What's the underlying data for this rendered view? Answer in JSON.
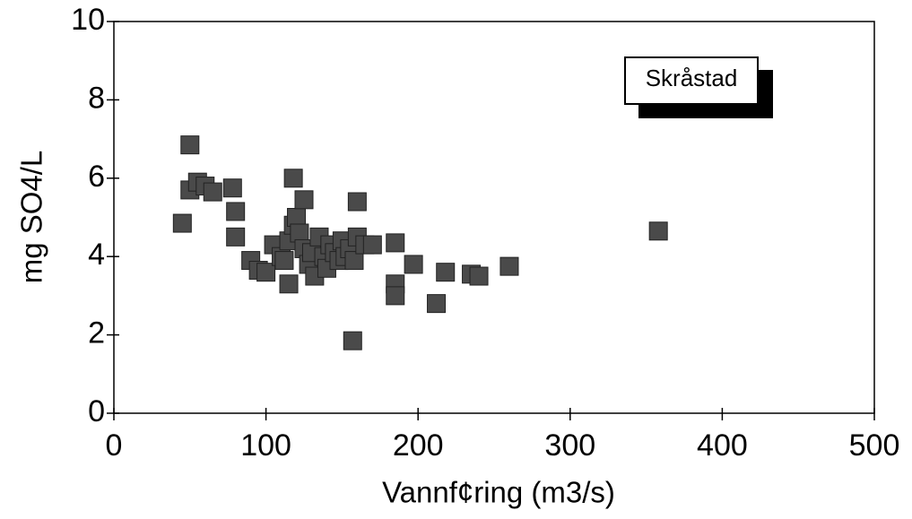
{
  "chart_data": {
    "type": "scatter",
    "x_label": "Vannf¢ring (m3/s)",
    "y_label": "mg SO4/L",
    "xlim": [
      0,
      500
    ],
    "xticks": [
      0,
      100,
      200,
      300,
      400,
      500
    ],
    "ylim": [
      0,
      10
    ],
    "yticks": [
      0,
      2,
      4,
      6,
      8,
      10
    ],
    "series": [
      {
        "name": "Skråstad",
        "color": "#4a4a4a",
        "x": [
          45,
          50,
          50,
          55,
          60,
          65,
          78,
          80,
          80,
          90,
          95,
          100,
          105,
          110,
          112,
          115,
          115,
          118,
          118,
          120,
          122,
          125,
          125,
          128,
          130,
          132,
          135,
          138,
          140,
          142,
          145,
          148,
          150,
          152,
          155,
          158,
          160,
          160,
          165,
          170,
          185,
          185,
          185,
          197,
          212,
          218,
          235,
          240,
          260,
          358,
          157
        ],
        "values": [
          4.85,
          6.85,
          5.7,
          5.9,
          5.8,
          5.65,
          5.75,
          5.15,
          4.5,
          3.9,
          3.65,
          3.6,
          4.3,
          4.0,
          3.9,
          4.4,
          3.3,
          4.8,
          6.0,
          5.0,
          4.6,
          5.45,
          4.2,
          3.8,
          4.1,
          3.5,
          4.5,
          4.0,
          3.7,
          4.3,
          4.1,
          3.9,
          4.4,
          4.0,
          4.2,
          3.9,
          4.5,
          5.4,
          4.3,
          4.3,
          4.35,
          3.3,
          3.0,
          3.8,
          2.8,
          3.6,
          3.55,
          3.5,
          3.75,
          4.65,
          1.85
        ]
      }
    ]
  }
}
